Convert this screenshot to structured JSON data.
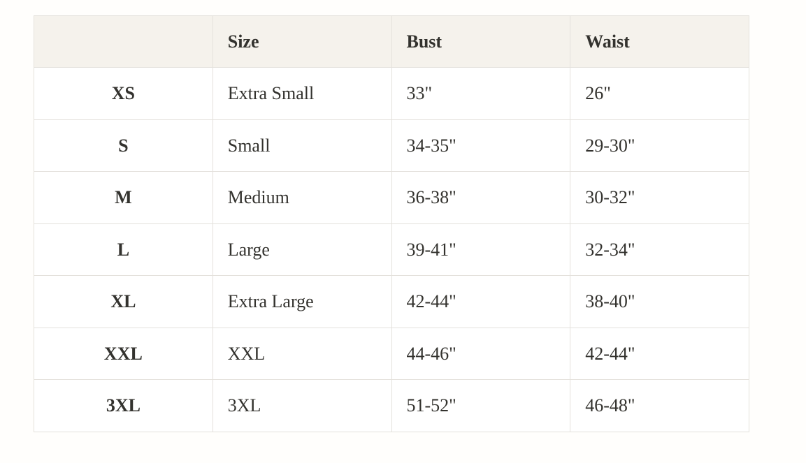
{
  "colors": {
    "page_background": "#fffefc",
    "header_background": "#f5f2ec",
    "border": "#e4e1dc",
    "text": "#33322e",
    "row_background": "#ffffff"
  },
  "chart_data": {
    "type": "table",
    "title": "",
    "columns": [
      {
        "label": ""
      },
      {
        "label": "Size"
      },
      {
        "label": "Bust"
      },
      {
        "label": "Waist"
      }
    ],
    "rows": [
      {
        "code": "XS",
        "size": "Extra Small",
        "bust": "33\"",
        "waist": "26\""
      },
      {
        "code": "S",
        "size": "Small",
        "bust": "34-35\"",
        "waist": "29-30\""
      },
      {
        "code": "M",
        "size": "Medium",
        "bust": "36-38\"",
        "waist": "30-32\""
      },
      {
        "code": "L",
        "size": "Large",
        "bust": "39-41\"",
        "waist": "32-34\""
      },
      {
        "code": "XL",
        "size": "Extra Large",
        "bust": "42-44\"",
        "waist": "38-40\""
      },
      {
        "code": "XXL",
        "size": "XXL",
        "bust": "44-46\"",
        "waist": "42-44\""
      },
      {
        "code": "3XL",
        "size": "3XL",
        "bust": "51-52\"",
        "waist": "46-48\""
      }
    ]
  }
}
